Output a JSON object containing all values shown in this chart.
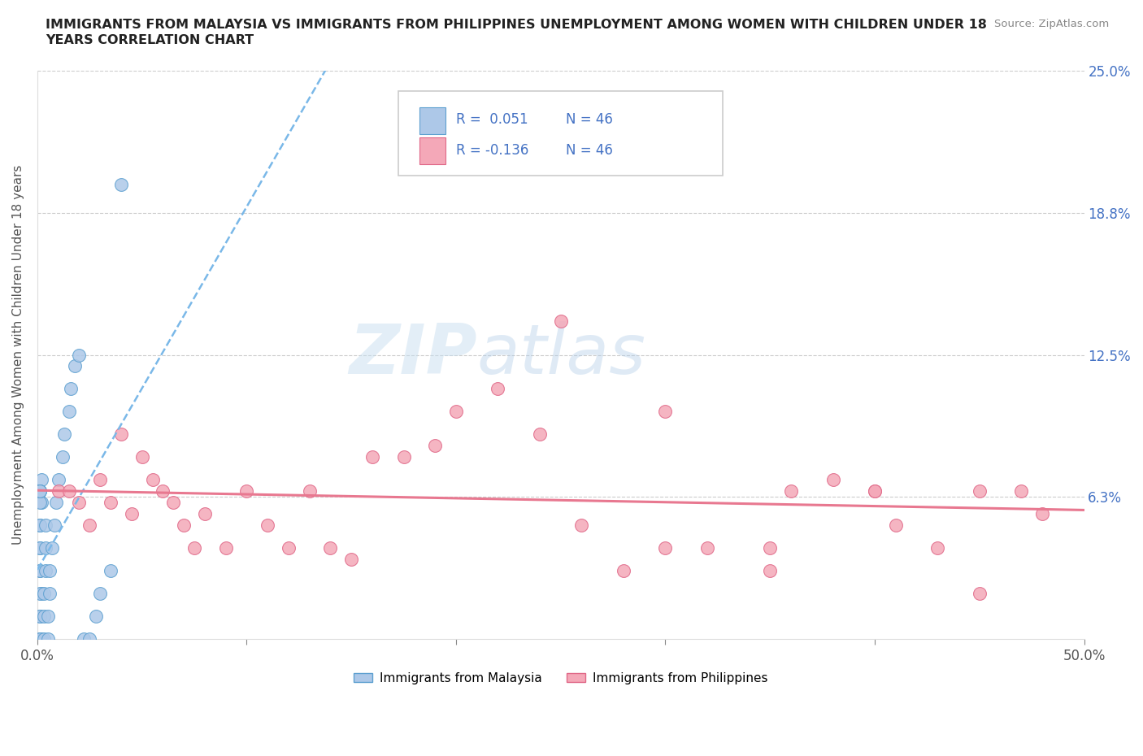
{
  "title_line1": "IMMIGRANTS FROM MALAYSIA VS IMMIGRANTS FROM PHILIPPINES UNEMPLOYMENT AMONG WOMEN WITH CHILDREN UNDER 18",
  "title_line2": "YEARS CORRELATION CHART",
  "source_text": "Source: ZipAtlas.com",
  "ylabel": "Unemployment Among Women with Children Under 18 years",
  "legend_malaysia_r": "R =  0.051",
  "legend_malaysia_n": "N = 46",
  "legend_philippines_r": "R = -0.136",
  "legend_philippines_n": "N = 46",
  "malaysia_color": "#adc8e8",
  "malaysia_edge": "#5da0d0",
  "philippines_color": "#f4a8b8",
  "philippines_edge": "#e06888",
  "malaysia_line_color": "#7ab8e8",
  "philippines_line_color": "#e87890",
  "watermark_zip": "ZIP",
  "watermark_atlas": "atlas",
  "r_color": "#4472c4",
  "n_color": "#4472c4",
  "ytick_color": "#4472c4",
  "xtick_color": "#555555",
  "xlim": [
    0.0,
    0.5
  ],
  "ylim": [
    0.0,
    0.25
  ],
  "xtick_vals": [
    0.0,
    0.1,
    0.2,
    0.3,
    0.4,
    0.5
  ],
  "xticklabels": [
    "0.0%",
    "",
    "",
    "",
    "",
    "50.0%"
  ],
  "ytick_vals": [
    0.0,
    0.0625,
    0.125,
    0.1875,
    0.25
  ],
  "yticklabels_right": [
    "",
    "6.3%",
    "12.5%",
    "18.8%",
    "25.0%"
  ],
  "xlabel_malaysia": "Immigrants from Malaysia",
  "xlabel_philippines": "Immigrants from Philippines",
  "malaysia_x": [
    0.001,
    0.001,
    0.002,
    0.001,
    0.001,
    0.001,
    0.002,
    0.001,
    0.001,
    0.001,
    0.001,
    0.001,
    0.001,
    0.001,
    0.002,
    0.001,
    0.002,
    0.001,
    0.001,
    0.001,
    0.003,
    0.003,
    0.003,
    0.004,
    0.004,
    0.004,
    0.005,
    0.005,
    0.006,
    0.006,
    0.007,
    0.008,
    0.009,
    0.01,
    0.012,
    0.013,
    0.015,
    0.016,
    0.018,
    0.02,
    0.022,
    0.025,
    0.028,
    0.03,
    0.035,
    0.04
  ],
  "malaysia_y": [
    0.0,
    0.0,
    0.0,
    0.0,
    0.01,
    0.01,
    0.02,
    0.02,
    0.03,
    0.03,
    0.04,
    0.04,
    0.05,
    0.05,
    0.06,
    0.06,
    0.07,
    0.065,
    0.065,
    0.065,
    0.0,
    0.01,
    0.02,
    0.03,
    0.04,
    0.05,
    0.0,
    0.01,
    0.02,
    0.03,
    0.04,
    0.05,
    0.06,
    0.07,
    0.08,
    0.09,
    0.1,
    0.11,
    0.12,
    0.125,
    0.0,
    0.0,
    0.01,
    0.02,
    0.03,
    0.2
  ],
  "philippines_x": [
    0.01,
    0.015,
    0.02,
    0.025,
    0.03,
    0.035,
    0.04,
    0.045,
    0.05,
    0.055,
    0.06,
    0.065,
    0.07,
    0.075,
    0.08,
    0.09,
    0.1,
    0.11,
    0.12,
    0.13,
    0.14,
    0.15,
    0.16,
    0.175,
    0.19,
    0.2,
    0.22,
    0.24,
    0.26,
    0.28,
    0.3,
    0.32,
    0.35,
    0.36,
    0.38,
    0.4,
    0.41,
    0.43,
    0.45,
    0.47,
    0.25,
    0.3,
    0.35,
    0.4,
    0.45,
    0.48
  ],
  "philippines_y": [
    0.065,
    0.065,
    0.06,
    0.05,
    0.07,
    0.06,
    0.09,
    0.055,
    0.08,
    0.07,
    0.065,
    0.06,
    0.05,
    0.04,
    0.055,
    0.04,
    0.065,
    0.05,
    0.04,
    0.065,
    0.04,
    0.035,
    0.08,
    0.08,
    0.085,
    0.1,
    0.11,
    0.09,
    0.05,
    0.03,
    0.04,
    0.04,
    0.03,
    0.065,
    0.07,
    0.065,
    0.05,
    0.04,
    0.02,
    0.065,
    0.14,
    0.1,
    0.04,
    0.065,
    0.065,
    0.055
  ]
}
